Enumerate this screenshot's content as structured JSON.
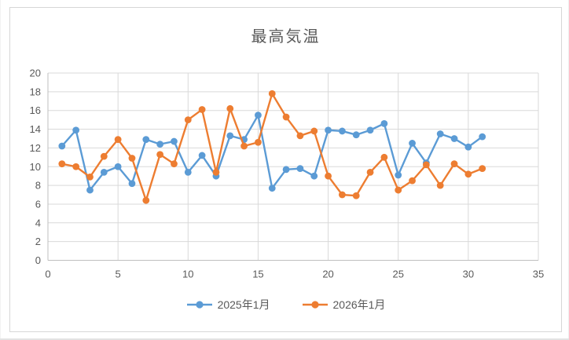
{
  "window": {
    "background": "#ffffff",
    "frame_border_color": "#d7d7d7"
  },
  "chart_data": {
    "type": "line",
    "title": "最高気温",
    "xlabel": "",
    "ylabel": "",
    "xlim": [
      0,
      35
    ],
    "ylim": [
      0,
      20
    ],
    "x_ticks": [
      0,
      5,
      10,
      15,
      20,
      25,
      30,
      35
    ],
    "y_ticks": [
      0,
      2,
      4,
      6,
      8,
      10,
      12,
      14,
      16,
      18,
      20
    ],
    "grid": true,
    "gridline_color": "#d9d9d9",
    "axis_line_color": "#bfbfbf",
    "axis_text_color": "#595959",
    "title_color": "#595959",
    "legend_position": "bottom",
    "marker": "circle",
    "x": [
      1,
      2,
      3,
      4,
      5,
      6,
      7,
      8,
      9,
      10,
      11,
      12,
      13,
      14,
      15,
      16,
      17,
      18,
      19,
      20,
      21,
      22,
      23,
      24,
      25,
      26,
      27,
      28,
      29,
      30,
      31
    ],
    "series": [
      {
        "name": "2025年1月",
        "color": "#5B9BD5",
        "values": [
          12.2,
          13.9,
          7.5,
          9.4,
          10.0,
          8.2,
          12.9,
          12.4,
          12.7,
          9.4,
          11.2,
          9.0,
          13.3,
          12.9,
          15.5,
          7.7,
          9.7,
          9.8,
          9.0,
          13.9,
          13.8,
          13.4,
          13.9,
          14.6,
          9.1,
          12.5,
          10.4,
          13.5,
          13.0,
          12.1,
          13.2
        ]
      },
      {
        "name": "2026年1月",
        "color": "#ED7D31",
        "values": [
          10.3,
          10.0,
          8.9,
          11.1,
          12.9,
          10.9,
          6.4,
          11.3,
          10.3,
          15.0,
          16.1,
          9.4,
          16.2,
          12.2,
          12.6,
          17.8,
          15.3,
          13.3,
          13.8,
          9.0,
          7.0,
          6.9,
          9.4,
          11.0,
          7.5,
          8.5,
          10.2,
          8.0,
          10.3,
          9.2,
          9.8
        ]
      }
    ]
  }
}
